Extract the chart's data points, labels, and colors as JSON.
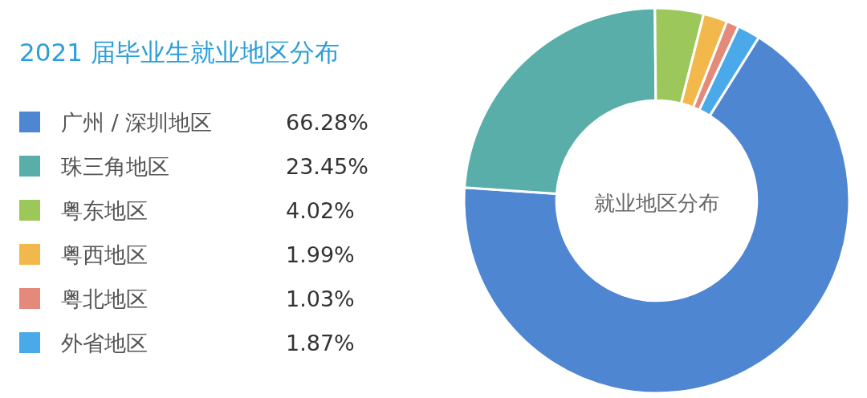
{
  "chart_data": {
    "type": "donut",
    "title": "2021 届毕业生就业地区分布",
    "categories": [
      "广州 / 深圳地区",
      "珠三角地区",
      "粤东地区",
      "粤西地区",
      "粤北地区",
      "外省地区"
    ],
    "values": [
      66.28,
      23.45,
      4.02,
      1.99,
      1.03,
      1.87
    ],
    "value_labels": [
      "66.28%",
      "23.45%",
      "4.02%",
      "1.99%",
      "1.03%",
      "1.87%"
    ],
    "colors": [
      "#4f86d2",
      "#5aaea9",
      "#9cc75b",
      "#f2b84c",
      "#e38a7b",
      "#4aa9e8"
    ],
    "annotations": [
      "就业地区分布"
    ],
    "legend": "left"
  }
}
